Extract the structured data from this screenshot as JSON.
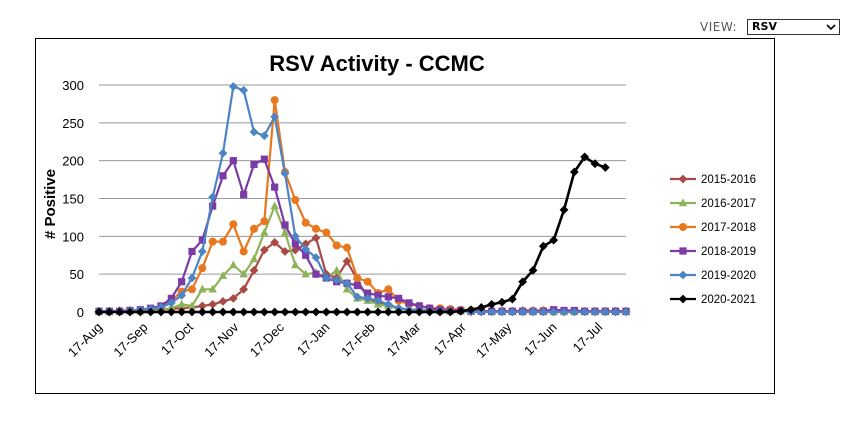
{
  "view": {
    "label": "VIEW:",
    "selected": "RSV"
  },
  "chart_data": {
    "type": "line",
    "title": "RSV Activity - CCMC",
    "ylabel": "# Positive",
    "xlabel": "",
    "ylim": [
      0,
      300
    ],
    "yticks": [
      0,
      50,
      100,
      150,
      200,
      250,
      300
    ],
    "xticks": [
      "17-Aug",
      "17-Sep",
      "17-Oct",
      "17-Nov",
      "17-Dec",
      "17-Jan",
      "17-Feb",
      "17-Mar",
      "17-Apr",
      "17-May",
      "17-Jun",
      "17-Jul"
    ],
    "grid": "horizontal",
    "legend": "right",
    "series": [
      {
        "name": "2015-2016",
        "color": "#a94a46",
        "marker": "diamond",
        "values": [
          1,
          1,
          2,
          2,
          3,
          3,
          3,
          4,
          5,
          6,
          8,
          10,
          14,
          18,
          30,
          55,
          82,
          92,
          80,
          82,
          90,
          98,
          50,
          45,
          67,
          43,
          18,
          12,
          8,
          5,
          3,
          3,
          2,
          2,
          1,
          1,
          1,
          1,
          1,
          1,
          1,
          2,
          2,
          2,
          2,
          1,
          1,
          1,
          1,
          1,
          1,
          1
        ]
      },
      {
        "name": "2016-2017",
        "color": "#8fb35a",
        "marker": "triangle",
        "values": [
          0,
          0,
          1,
          1,
          1,
          2,
          3,
          5,
          10,
          8,
          30,
          30,
          48,
          62,
          50,
          70,
          105,
          140,
          105,
          62,
          50,
          52,
          45,
          55,
          30,
          18,
          15,
          10,
          8,
          5,
          3,
          2,
          2,
          1,
          1,
          1,
          1,
          1,
          0,
          0,
          0,
          0,
          0,
          0,
          0,
          0,
          0,
          0,
          0,
          0,
          0,
          0
        ]
      },
      {
        "name": "2017-2018",
        "color": "#e8771e",
        "marker": "circle",
        "values": [
          1,
          1,
          1,
          2,
          2,
          3,
          5,
          15,
          27,
          30,
          58,
          93,
          93,
          116,
          80,
          110,
          120,
          280,
          185,
          148,
          118,
          110,
          105,
          88,
          85,
          45,
          40,
          25,
          30,
          15,
          10,
          8,
          5,
          5,
          4,
          3,
          2,
          1,
          1,
          1,
          1,
          1,
          1,
          2,
          1,
          1,
          1,
          1,
          1,
          1,
          1,
          1
        ]
      },
      {
        "name": "2018-2019",
        "color": "#7b3aa5",
        "marker": "square",
        "values": [
          1,
          1,
          1,
          2,
          3,
          5,
          8,
          18,
          40,
          80,
          95,
          140,
          180,
          200,
          155,
          195,
          202,
          165,
          115,
          90,
          75,
          50,
          45,
          40,
          38,
          35,
          25,
          22,
          20,
          18,
          12,
          8,
          5,
          3,
          2,
          2,
          1,
          1,
          1,
          1,
          1,
          1,
          1,
          1,
          3,
          2,
          2,
          1,
          1,
          1,
          1,
          1
        ]
      },
      {
        "name": "2019-2020",
        "color": "#4d84c4",
        "marker": "diamond",
        "values": [
          1,
          1,
          1,
          2,
          3,
          4,
          6,
          12,
          22,
          45,
          80,
          152,
          210,
          298,
          293,
          238,
          233,
          258,
          183,
          100,
          83,
          72,
          45,
          42,
          38,
          20,
          18,
          15,
          10,
          5,
          3,
          2,
          1,
          1,
          1,
          1,
          0,
          0,
          0,
          0,
          0,
          0,
          0,
          0,
          0,
          0,
          0,
          0,
          0,
          0,
          0,
          0
        ]
      },
      {
        "name": "2020-2021",
        "color": "#000000",
        "marker": "diamond",
        "values": [
          0,
          0,
          0,
          0,
          0,
          0,
          0,
          0,
          0,
          0,
          0,
          0,
          0,
          0,
          0,
          0,
          0,
          0,
          0,
          0,
          0,
          0,
          0,
          0,
          0,
          0,
          0,
          0,
          0,
          0,
          0,
          0,
          0,
          0,
          0,
          1,
          3,
          6,
          10,
          13,
          17,
          40,
          55,
          87,
          95,
          135,
          185,
          205,
          196,
          191
        ]
      }
    ]
  }
}
